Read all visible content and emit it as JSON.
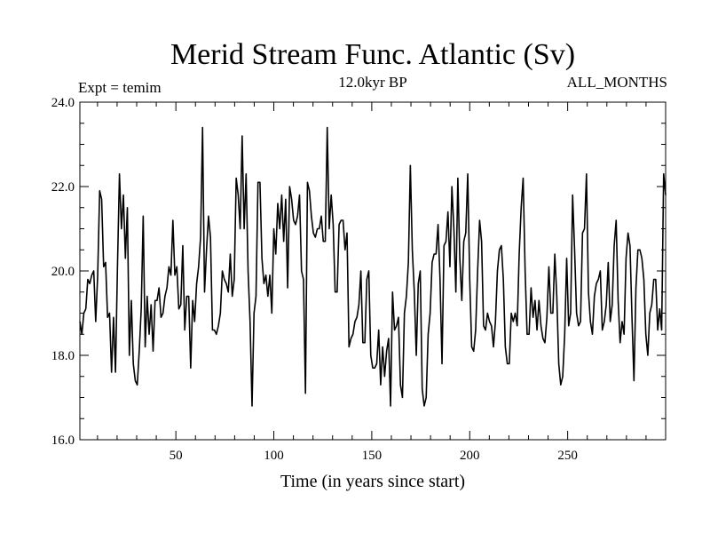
{
  "chart_data": {
    "type": "line",
    "title": "Merid Stream Func. Atlantic (Sv)",
    "subtitle_left": "Expt = temim",
    "subtitle_center": "12.0kyr BP",
    "subtitle_right": "ALL_MONTHS",
    "xlabel": "Time (in years since start)",
    "ylabel": "",
    "xlim": [
      1,
      300
    ],
    "ylim": [
      16.0,
      24.0
    ],
    "xticks": [
      50,
      100,
      150,
      200,
      250
    ],
    "yticks": [
      16.0,
      18.0,
      20.0,
      22.0,
      24.0
    ],
    "ytick_labels": [
      "16.0",
      "18.0",
      "20.0",
      "22.0",
      "24.0"
    ],
    "xtick_labels": [
      "50",
      "100",
      "150",
      "200",
      "250"
    ],
    "grid": false,
    "series": [
      {
        "values": [
          18.8,
          18.5,
          19.0,
          19.1,
          19.8,
          19.7,
          19.9,
          20.0,
          18.8,
          19.9,
          21.9,
          21.7,
          20.1,
          20.2,
          18.9,
          19.0,
          17.6,
          18.9,
          17.6,
          20.1,
          22.3,
          21.0,
          21.8,
          20.3,
          21.5,
          18.0,
          19.3,
          17.8,
          17.4,
          17.3,
          18.1,
          19.1,
          21.3,
          18.2,
          19.4,
          18.5,
          19.2,
          18.1,
          19.3,
          19.3,
          19.6,
          18.9,
          19.0,
          19.4,
          19.6,
          20.1,
          19.9,
          21.2,
          19.9,
          20.1,
          19.1,
          19.2,
          20.6,
          18.6,
          19.4,
          19.4,
          17.7,
          19.3,
          18.8,
          19.7,
          20.1,
          20.8,
          23.4,
          19.5,
          20.5,
          21.3,
          20.8,
          18.6,
          18.6,
          18.5,
          18.7,
          19.0,
          20.0,
          19.8,
          19.7,
          19.5,
          20.4,
          19.4,
          19.8,
          22.2,
          21.8,
          21.0,
          23.2,
          21.0,
          22.3,
          20.0,
          18.8,
          16.8,
          19.0,
          19.4,
          22.1,
          22.1,
          20.3,
          19.7,
          19.9,
          19.4,
          19.9,
          19.0,
          21.0,
          20.4,
          21.6,
          21.0,
          21.8,
          20.7,
          21.7,
          19.6,
          22.0,
          21.7,
          21.2,
          21.1,
          21.3,
          21.8,
          20.0,
          19.8,
          17.1,
          22.1,
          21.9,
          21.3,
          20.9,
          20.8,
          21.0,
          21.0,
          21.3,
          20.7,
          20.7,
          23.4,
          21.0,
          21.8,
          21.1,
          19.5,
          19.5,
          21.1,
          21.2,
          21.2,
          20.5,
          20.9,
          18.2,
          18.4,
          18.5,
          18.8,
          18.9,
          19.2,
          20.0,
          18.3,
          18.3,
          19.8,
          20.0,
          18.0,
          17.7,
          17.7,
          17.8,
          18.6,
          17.3,
          18.2,
          17.5,
          18.1,
          18.4,
          16.8,
          19.5,
          18.6,
          18.7,
          18.9,
          17.3,
          17.0,
          19.0,
          19.4,
          20.2,
          22.5,
          20.5,
          19.5,
          18.0,
          19.7,
          20.0,
          17.2,
          16.8,
          17.0,
          18.5,
          19.0,
          20.2,
          20.4,
          20.4,
          21.1,
          19.8,
          17.8,
          20.6,
          20.7,
          21.4,
          20.1,
          22.0,
          21.0,
          19.5,
          22.2,
          20.3,
          19.3,
          20.7,
          20.9,
          22.3,
          19.8,
          18.2,
          18.1,
          18.6,
          20.0,
          21.2,
          20.7,
          18.7,
          18.6,
          19.0,
          18.8,
          18.7,
          18.2,
          18.8,
          20.0,
          20.5,
          20.6,
          19.8,
          18.2,
          17.8,
          17.8,
          19.0,
          18.8,
          19.0,
          18.7,
          20.4,
          21.5,
          22.2,
          20.0,
          18.5,
          18.5,
          19.6,
          18.9,
          19.3,
          18.6,
          19.3,
          18.7,
          18.4,
          18.3,
          18.9,
          20.1,
          19.0,
          19.0,
          20.4,
          19.4,
          17.8,
          17.3,
          17.5,
          18.5,
          20.3,
          18.7,
          19.0,
          21.8,
          20.5,
          19.0,
          18.7,
          18.8,
          20.9,
          21.0,
          22.3,
          19.5,
          18.8,
          18.5,
          19.4,
          19.7,
          19.8,
          20.0,
          18.6,
          18.8,
          19.2,
          20.2,
          18.8,
          19.2,
          20.6,
          21.2,
          19.3,
          18.3,
          18.8,
          18.5,
          20.3,
          20.9,
          20.6,
          18.9,
          17.4,
          19.6,
          20.5,
          20.5,
          20.3,
          19.8,
          18.5,
          18.0,
          19.0,
          19.2,
          19.8,
          19.8,
          18.6,
          19.1,
          18.6,
          22.3,
          21.8
        ]
      }
    ]
  }
}
